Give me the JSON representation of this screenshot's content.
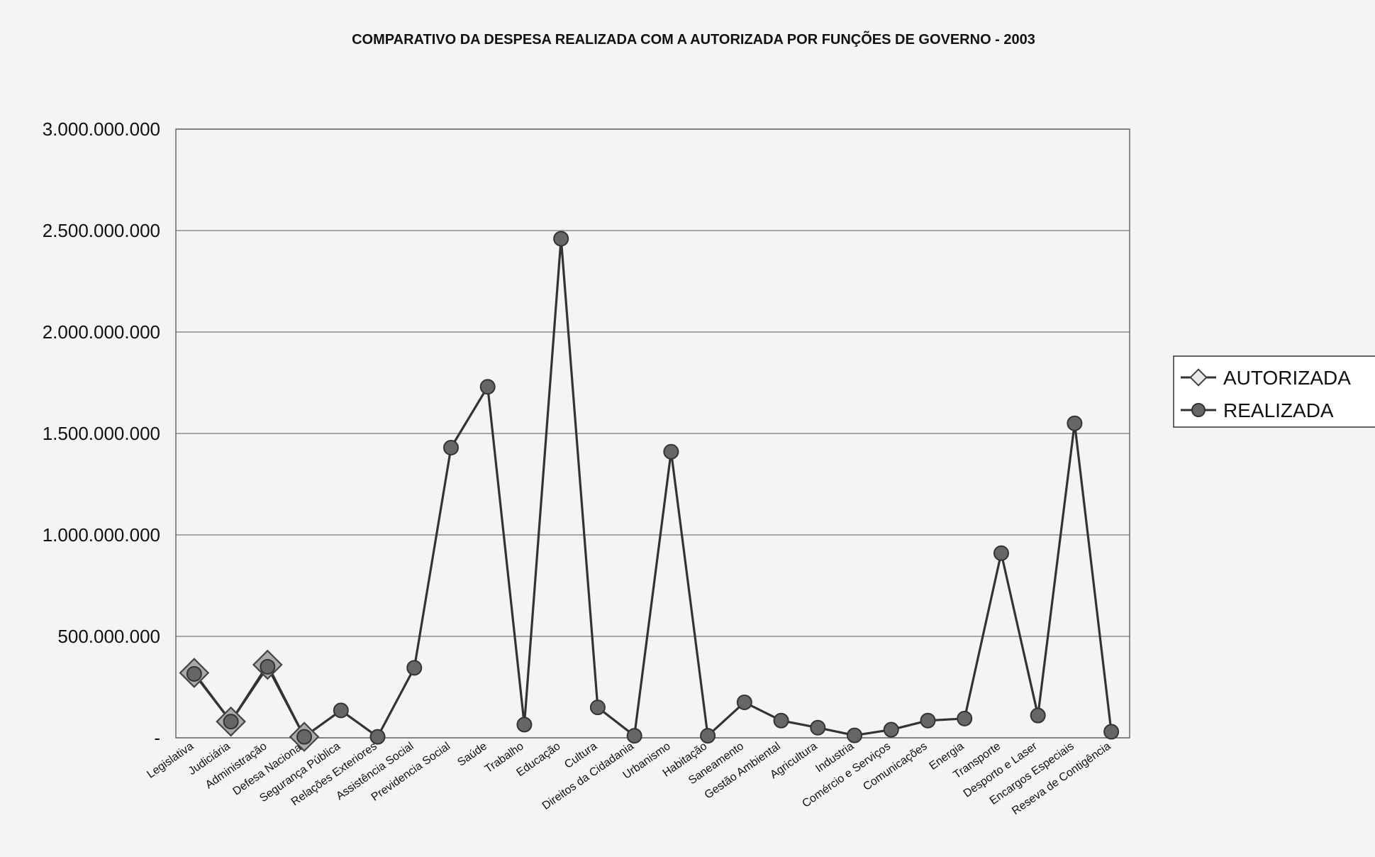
{
  "chart_data": {
    "type": "line",
    "title": "COMPARATIVO DA DESPESA REALIZADA COM A AUTORIZADA POR FUNÇÕES DE GOVERNO - 2003",
    "xlabel": "",
    "ylabel": "",
    "ylim": [
      0,
      3000000000
    ],
    "ytick_values": [
      0,
      500000000,
      1000000000,
      1500000000,
      2000000000,
      2500000000,
      3000000000
    ],
    "ytick_labels": [
      "-",
      "500.000.000",
      "1.000.000.000",
      "1.500.000.000",
      "2.000.000.000",
      "2.500.000.000",
      "3.000.000.000"
    ],
    "grid": true,
    "legend_position": "right",
    "categories": [
      "Legislativa",
      "Judiciária",
      "Administração",
      "Defesa Nacional",
      "Segurança Pública",
      "Relações Exteriores",
      "Assistência Social",
      "Previdencia Social",
      "Saúde",
      "Trabalho",
      "Educação",
      "Cultura",
      "Direitos da Cidadania",
      "Urbanismo",
      "Habitação",
      "Saneamento",
      "Gestão Ambiental",
      "Agricultura",
      "Industria",
      "Comércio e Serviços",
      "Comunicações",
      "Energia",
      "Transporte",
      "Desporto e Laser",
      "Encargos Especiais",
      "Reseva de Contigência"
    ],
    "series": [
      {
        "name": "AUTORIZADA",
        "marker": "diamond",
        "color": "#aaaaaa",
        "values": [
          320000000,
          80000000,
          360000000,
          5000000,
          null,
          null,
          null,
          null,
          null,
          null,
          null,
          null,
          null,
          null,
          null,
          null,
          null,
          null,
          null,
          null,
          null,
          null,
          null,
          null,
          null,
          null
        ]
      },
      {
        "name": "REALIZADA",
        "marker": "circle",
        "color": "#666666",
        "values": [
          315000000,
          80000000,
          350000000,
          5000000,
          135000000,
          5000000,
          345000000,
          1430000000,
          1730000000,
          65000000,
          2460000000,
          150000000,
          10000000,
          1410000000,
          10000000,
          175000000,
          85000000,
          50000000,
          12000000,
          40000000,
          85000000,
          95000000,
          910000000,
          110000000,
          1550000000,
          30000000
        ]
      }
    ]
  }
}
